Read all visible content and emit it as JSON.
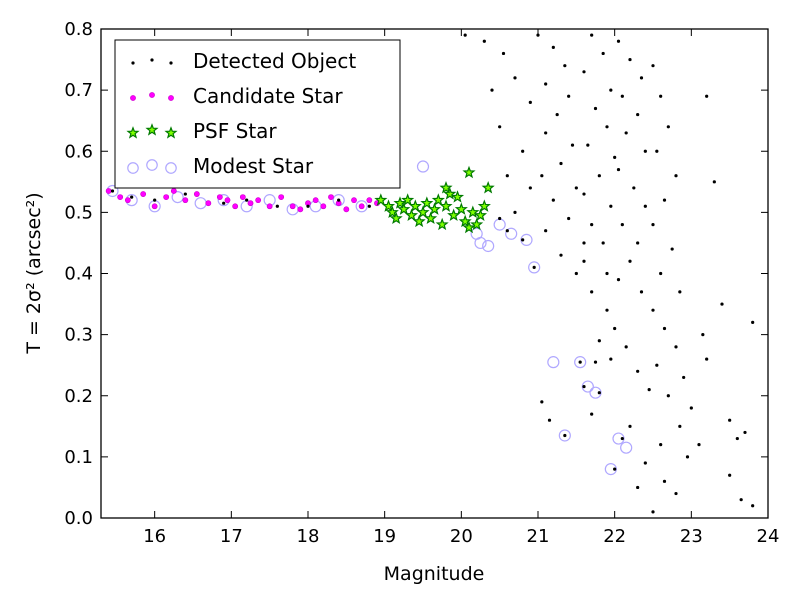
{
  "chart_data": {
    "type": "scatter",
    "xlabel": "Magnitude",
    "ylabel": "T = 2σ² (arcsec²)",
    "xlim": [
      15.3,
      24
    ],
    "ylim": [
      0.0,
      0.8
    ],
    "x_ticks": [
      "16",
      "17",
      "18",
      "19",
      "20",
      "21",
      "22",
      "23",
      "24"
    ],
    "y_ticks": [
      "0.0",
      "0.1",
      "0.2",
      "0.3",
      "0.4",
      "0.5",
      "0.6",
      "0.7",
      "0.8"
    ],
    "legend_position": "top-left",
    "colors": {
      "detected": "#000000",
      "candidate": "#ff00ff",
      "psf_edge": "#007a00",
      "psf_fill": "#7fff00",
      "modest": "#b0a8ff"
    },
    "series": [
      {
        "name": "Detected Object",
        "marker": "dot",
        "points": [
          [
            15.45,
            0.535
          ],
          [
            15.7,
            0.525
          ],
          [
            16.0,
            0.52
          ],
          [
            16.4,
            0.53
          ],
          [
            16.9,
            0.515
          ],
          [
            17.2,
            0.52
          ],
          [
            17.6,
            0.51
          ],
          [
            18.0,
            0.51
          ],
          [
            18.4,
            0.52
          ],
          [
            18.8,
            0.51
          ],
          [
            20.5,
            0.49
          ],
          [
            20.6,
            0.47
          ],
          [
            20.8,
            0.455
          ],
          [
            20.95,
            0.41
          ],
          [
            20.05,
            0.79
          ],
          [
            20.3,
            0.78
          ],
          [
            20.55,
            0.76
          ],
          [
            20.4,
            0.7
          ],
          [
            20.7,
            0.72
          ],
          [
            20.9,
            0.68
          ],
          [
            20.5,
            0.64
          ],
          [
            20.8,
            0.6
          ],
          [
            20.6,
            0.56
          ],
          [
            20.9,
            0.54
          ],
          [
            20.7,
            0.5
          ],
          [
            21.0,
            0.79
          ],
          [
            21.2,
            0.77
          ],
          [
            21.35,
            0.74
          ],
          [
            21.1,
            0.71
          ],
          [
            21.4,
            0.69
          ],
          [
            21.25,
            0.66
          ],
          [
            21.1,
            0.63
          ],
          [
            21.45,
            0.61
          ],
          [
            21.3,
            0.58
          ],
          [
            21.05,
            0.56
          ],
          [
            21.5,
            0.54
          ],
          [
            21.2,
            0.52
          ],
          [
            21.4,
            0.49
          ],
          [
            21.1,
            0.47
          ],
          [
            21.6,
            0.45
          ],
          [
            21.7,
            0.79
          ],
          [
            21.85,
            0.76
          ],
          [
            21.6,
            0.73
          ],
          [
            21.95,
            0.7
          ],
          [
            21.75,
            0.67
          ],
          [
            21.9,
            0.64
          ],
          [
            21.65,
            0.61
          ],
          [
            22.0,
            0.59
          ],
          [
            21.8,
            0.56
          ],
          [
            21.6,
            0.53
          ],
          [
            21.95,
            0.51
          ],
          [
            21.7,
            0.48
          ],
          [
            21.85,
            0.45
          ],
          [
            21.6,
            0.42
          ],
          [
            21.9,
            0.4
          ],
          [
            22.05,
            0.78
          ],
          [
            22.2,
            0.75
          ],
          [
            22.35,
            0.72
          ],
          [
            22.1,
            0.69
          ],
          [
            22.3,
            0.66
          ],
          [
            22.15,
            0.63
          ],
          [
            22.4,
            0.6
          ],
          [
            22.05,
            0.57
          ],
          [
            22.25,
            0.54
          ],
          [
            22.4,
            0.51
          ],
          [
            22.1,
            0.48
          ],
          [
            22.3,
            0.45
          ],
          [
            22.2,
            0.42
          ],
          [
            22.05,
            0.39
          ],
          [
            22.35,
            0.37
          ],
          [
            22.5,
            0.74
          ],
          [
            22.6,
            0.69
          ],
          [
            22.7,
            0.64
          ],
          [
            22.55,
            0.6
          ],
          [
            22.8,
            0.56
          ],
          [
            22.65,
            0.52
          ],
          [
            22.5,
            0.48
          ],
          [
            22.75,
            0.44
          ],
          [
            22.6,
            0.4
          ],
          [
            22.85,
            0.37
          ],
          [
            22.5,
            0.34
          ],
          [
            22.65,
            0.31
          ],
          [
            22.8,
            0.28
          ],
          [
            22.55,
            0.25
          ],
          [
            22.9,
            0.23
          ],
          [
            22.7,
            0.2
          ],
          [
            23.0,
            0.18
          ],
          [
            22.85,
            0.15
          ],
          [
            23.1,
            0.12
          ],
          [
            22.95,
            0.1
          ],
          [
            23.2,
            0.69
          ],
          [
            23.3,
            0.55
          ],
          [
            23.4,
            0.35
          ],
          [
            23.2,
            0.26
          ],
          [
            23.15,
            0.3
          ],
          [
            23.5,
            0.16
          ],
          [
            23.6,
            0.13
          ],
          [
            23.7,
            0.14
          ],
          [
            23.5,
            0.07
          ],
          [
            23.65,
            0.03
          ],
          [
            23.8,
            0.02
          ],
          [
            23.8,
            0.32
          ],
          [
            22.3,
            0.05
          ],
          [
            22.5,
            0.01
          ],
          [
            22.65,
            0.06
          ],
          [
            22.8,
            0.04
          ],
          [
            22.4,
            0.09
          ],
          [
            22.6,
            0.12
          ],
          [
            22.2,
            0.15
          ],
          [
            21.55,
            0.255
          ],
          [
            21.75,
            0.255
          ],
          [
            21.7,
            0.17
          ],
          [
            22.1,
            0.13
          ],
          [
            22.0,
            0.08
          ],
          [
            21.35,
            0.135
          ],
          [
            21.05,
            0.19
          ],
          [
            21.15,
            0.16
          ],
          [
            21.6,
            0.215
          ],
          [
            21.8,
            0.205
          ],
          [
            21.3,
            0.43
          ],
          [
            21.5,
            0.4
          ],
          [
            21.7,
            0.37
          ],
          [
            21.9,
            0.34
          ],
          [
            22.0,
            0.31
          ],
          [
            22.15,
            0.28
          ],
          [
            22.3,
            0.24
          ],
          [
            22.45,
            0.21
          ],
          [
            21.8,
            0.29
          ],
          [
            21.95,
            0.26
          ]
        ]
      },
      {
        "name": "Candidate Star",
        "marker": "circle",
        "points": [
          [
            15.4,
            0.535
          ],
          [
            15.55,
            0.525
          ],
          [
            15.65,
            0.52
          ],
          [
            15.85,
            0.53
          ],
          [
            16.0,
            0.51
          ],
          [
            16.15,
            0.525
          ],
          [
            16.25,
            0.535
          ],
          [
            16.4,
            0.52
          ],
          [
            16.55,
            0.53
          ],
          [
            16.7,
            0.515
          ],
          [
            16.85,
            0.525
          ],
          [
            16.95,
            0.52
          ],
          [
            17.05,
            0.51
          ],
          [
            17.15,
            0.525
          ],
          [
            17.25,
            0.515
          ],
          [
            17.35,
            0.52
          ],
          [
            17.5,
            0.51
          ],
          [
            17.65,
            0.525
          ],
          [
            17.8,
            0.51
          ],
          [
            17.9,
            0.505
          ],
          [
            18.0,
            0.515
          ],
          [
            18.1,
            0.52
          ],
          [
            18.2,
            0.51
          ],
          [
            18.3,
            0.525
          ],
          [
            18.4,
            0.515
          ],
          [
            18.5,
            0.505
          ],
          [
            18.6,
            0.52
          ],
          [
            18.7,
            0.51
          ],
          [
            18.8,
            0.52
          ],
          [
            18.9,
            0.515
          ]
        ]
      },
      {
        "name": "PSF Star",
        "marker": "star",
        "points": [
          [
            18.95,
            0.52
          ],
          [
            19.05,
            0.51
          ],
          [
            19.1,
            0.5
          ],
          [
            19.15,
            0.49
          ],
          [
            19.2,
            0.515
          ],
          [
            19.25,
            0.505
          ],
          [
            19.3,
            0.52
          ],
          [
            19.35,
            0.495
          ],
          [
            19.4,
            0.51
          ],
          [
            19.45,
            0.485
          ],
          [
            19.5,
            0.5
          ],
          [
            19.55,
            0.515
          ],
          [
            19.6,
            0.49
          ],
          [
            19.65,
            0.505
          ],
          [
            19.7,
            0.52
          ],
          [
            19.75,
            0.48
          ],
          [
            19.8,
            0.51
          ],
          [
            19.85,
            0.53
          ],
          [
            19.9,
            0.495
          ],
          [
            19.95,
            0.525
          ],
          [
            20.0,
            0.505
          ],
          [
            20.05,
            0.485
          ],
          [
            20.1,
            0.475
          ],
          [
            20.15,
            0.5
          ],
          [
            20.2,
            0.48
          ],
          [
            20.25,
            0.495
          ],
          [
            20.3,
            0.51
          ],
          [
            20.35,
            0.54
          ],
          [
            20.1,
            0.565
          ],
          [
            19.8,
            0.54
          ]
        ]
      },
      {
        "name": "Modest Star",
        "marker": "ring",
        "points": [
          [
            15.45,
            0.535
          ],
          [
            15.7,
            0.52
          ],
          [
            16.0,
            0.51
          ],
          [
            16.3,
            0.525
          ],
          [
            16.6,
            0.515
          ],
          [
            16.9,
            0.52
          ],
          [
            17.2,
            0.51
          ],
          [
            17.5,
            0.52
          ],
          [
            17.8,
            0.505
          ],
          [
            18.1,
            0.51
          ],
          [
            18.4,
            0.52
          ],
          [
            18.7,
            0.51
          ],
          [
            19.5,
            0.575
          ],
          [
            20.2,
            0.465
          ],
          [
            20.25,
            0.45
          ],
          [
            20.35,
            0.445
          ],
          [
            20.5,
            0.48
          ],
          [
            20.65,
            0.465
          ],
          [
            20.85,
            0.455
          ],
          [
            20.95,
            0.41
          ],
          [
            21.2,
            0.255
          ],
          [
            21.55,
            0.255
          ],
          [
            21.65,
            0.215
          ],
          [
            21.75,
            0.205
          ],
          [
            21.35,
            0.135
          ],
          [
            22.05,
            0.13
          ],
          [
            22.15,
            0.115
          ],
          [
            21.95,
            0.08
          ]
        ]
      }
    ]
  }
}
